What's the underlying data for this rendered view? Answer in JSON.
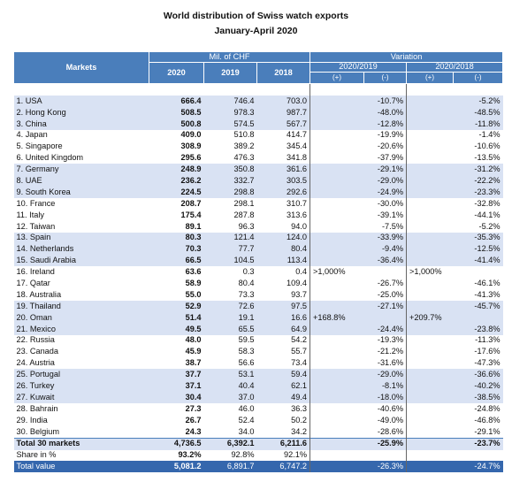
{
  "title": "World distribution of Swiss watch exports",
  "subtitle": "January-April 2020",
  "table": {
    "header": {
      "markets": "Markets",
      "mil_chf": "Mil. of CHF",
      "years": [
        "2020",
        "2019",
        "2018"
      ],
      "variation": "Variation",
      "periods": [
        "2020/2019",
        "2020/2018"
      ],
      "signs": [
        "(+)",
        "(-)",
        "(+)",
        "(-)"
      ]
    },
    "rows": [
      [
        "1. USA",
        "666.4",
        "746.4",
        "703.0",
        null,
        "-10.7%",
        null,
        "-5.2%"
      ],
      [
        "2. Hong Kong",
        "508.5",
        "978.3",
        "987.7",
        null,
        "-48.0%",
        null,
        "-48.5%"
      ],
      [
        "3. China",
        "500.8",
        "574.5",
        "567.7",
        null,
        "-12.8%",
        null,
        "-11.8%"
      ],
      [
        "4. Japan",
        "409.0",
        "510.8",
        "414.7",
        null,
        "-19.9%",
        null,
        "-1.4%"
      ],
      [
        "5. Singapore",
        "308.9",
        "389.2",
        "345.4",
        null,
        "-20.6%",
        null,
        "-10.6%"
      ],
      [
        "6. United Kingdom",
        "295.6",
        "476.3",
        "341.8",
        null,
        "-37.9%",
        null,
        "-13.5%"
      ],
      [
        "7. Germany",
        "248.9",
        "350.8",
        "361.6",
        null,
        "-29.1%",
        null,
        "-31.2%"
      ],
      [
        "8. UAE",
        "236.2",
        "332.7",
        "303.5",
        null,
        "-29.0%",
        null,
        "-22.2%"
      ],
      [
        "9. South Korea",
        "224.5",
        "298.8",
        "292.6",
        null,
        "-24.9%",
        null,
        "-23.3%"
      ],
      [
        "10. France",
        "208.7",
        "298.1",
        "310.7",
        null,
        "-30.0%",
        null,
        "-32.8%"
      ],
      [
        "11. Italy",
        "175.4",
        "287.8",
        "313.6",
        null,
        "-39.1%",
        null,
        "-44.1%"
      ],
      [
        "12. Taiwan",
        "89.1",
        "96.3",
        "94.0",
        null,
        "-7.5%",
        null,
        "-5.2%"
      ],
      [
        "13. Spain",
        "80.3",
        "121.4",
        "124.0",
        null,
        "-33.9%",
        null,
        "-35.3%"
      ],
      [
        "14. Netherlands",
        "70.3",
        "77.7",
        "80.4",
        null,
        "-9.4%",
        null,
        "-12.5%"
      ],
      [
        "15. Saudi Arabia",
        "66.5",
        "104.5",
        "113.4",
        null,
        "-36.4%",
        null,
        "-41.4%"
      ],
      [
        "16. Ireland",
        "63.6",
        "0.3",
        "0.4",
        ">1,000%",
        null,
        ">1,000%",
        null
      ],
      [
        "17. Qatar",
        "58.9",
        "80.4",
        "109.4",
        null,
        "-26.7%",
        null,
        "-46.1%"
      ],
      [
        "18. Australia",
        "55.0",
        "73.3",
        "93.7",
        null,
        "-25.0%",
        null,
        "-41.3%"
      ],
      [
        "19. Thailand",
        "52.9",
        "72.6",
        "97.5",
        null,
        "-27.1%",
        null,
        "-45.7%"
      ],
      [
        "20. Oman",
        "51.4",
        "19.1",
        "16.6",
        "+168.8%",
        null,
        "+209.7%",
        null
      ],
      [
        "21. Mexico",
        "49.5",
        "65.5",
        "64.9",
        null,
        "-24.4%",
        null,
        "-23.8%"
      ],
      [
        "22. Russia",
        "48.0",
        "59.5",
        "54.2",
        null,
        "-19.3%",
        null,
        "-11.3%"
      ],
      [
        "23. Canada",
        "45.9",
        "58.3",
        "55.7",
        null,
        "-21.2%",
        null,
        "-17.6%"
      ],
      [
        "24. Austria",
        "38.7",
        "56.6",
        "73.4",
        null,
        "-31.6%",
        null,
        "-47.3%"
      ],
      [
        "25. Portugal",
        "37.7",
        "53.1",
        "59.4",
        null,
        "-29.0%",
        null,
        "-36.6%"
      ],
      [
        "26. Turkey",
        "37.1",
        "40.4",
        "62.1",
        null,
        "-8.1%",
        null,
        "-40.2%"
      ],
      [
        "27. Kuwait",
        "30.4",
        "37.0",
        "49.4",
        null,
        "-18.0%",
        null,
        "-38.5%"
      ],
      [
        "28. Bahrain",
        "27.3",
        "46.0",
        "36.3",
        null,
        "-40.6%",
        null,
        "-24.8%"
      ],
      [
        "29. India",
        "26.7",
        "52.4",
        "50.2",
        null,
        "-49.0%",
        null,
        "-46.8%"
      ],
      [
        "30. Belgium",
        "24.3",
        "34.0",
        "34.2",
        null,
        "-28.6%",
        null,
        "-29.1%"
      ]
    ],
    "total_markets": [
      "Total 30 markets",
      "4,736.5",
      "6,392.1",
      "6,211.6",
      null,
      "-25.9%",
      null,
      "-23.7%"
    ],
    "share": [
      "Share in %",
      "93.2%",
      "92.8%",
      "92.1%",
      null,
      null,
      null,
      null
    ],
    "total_value": [
      "Total value",
      "5,081.2",
      "6,891.7",
      "6,747.2",
      null,
      "-26.3%",
      null,
      "-24.7%"
    ]
  }
}
